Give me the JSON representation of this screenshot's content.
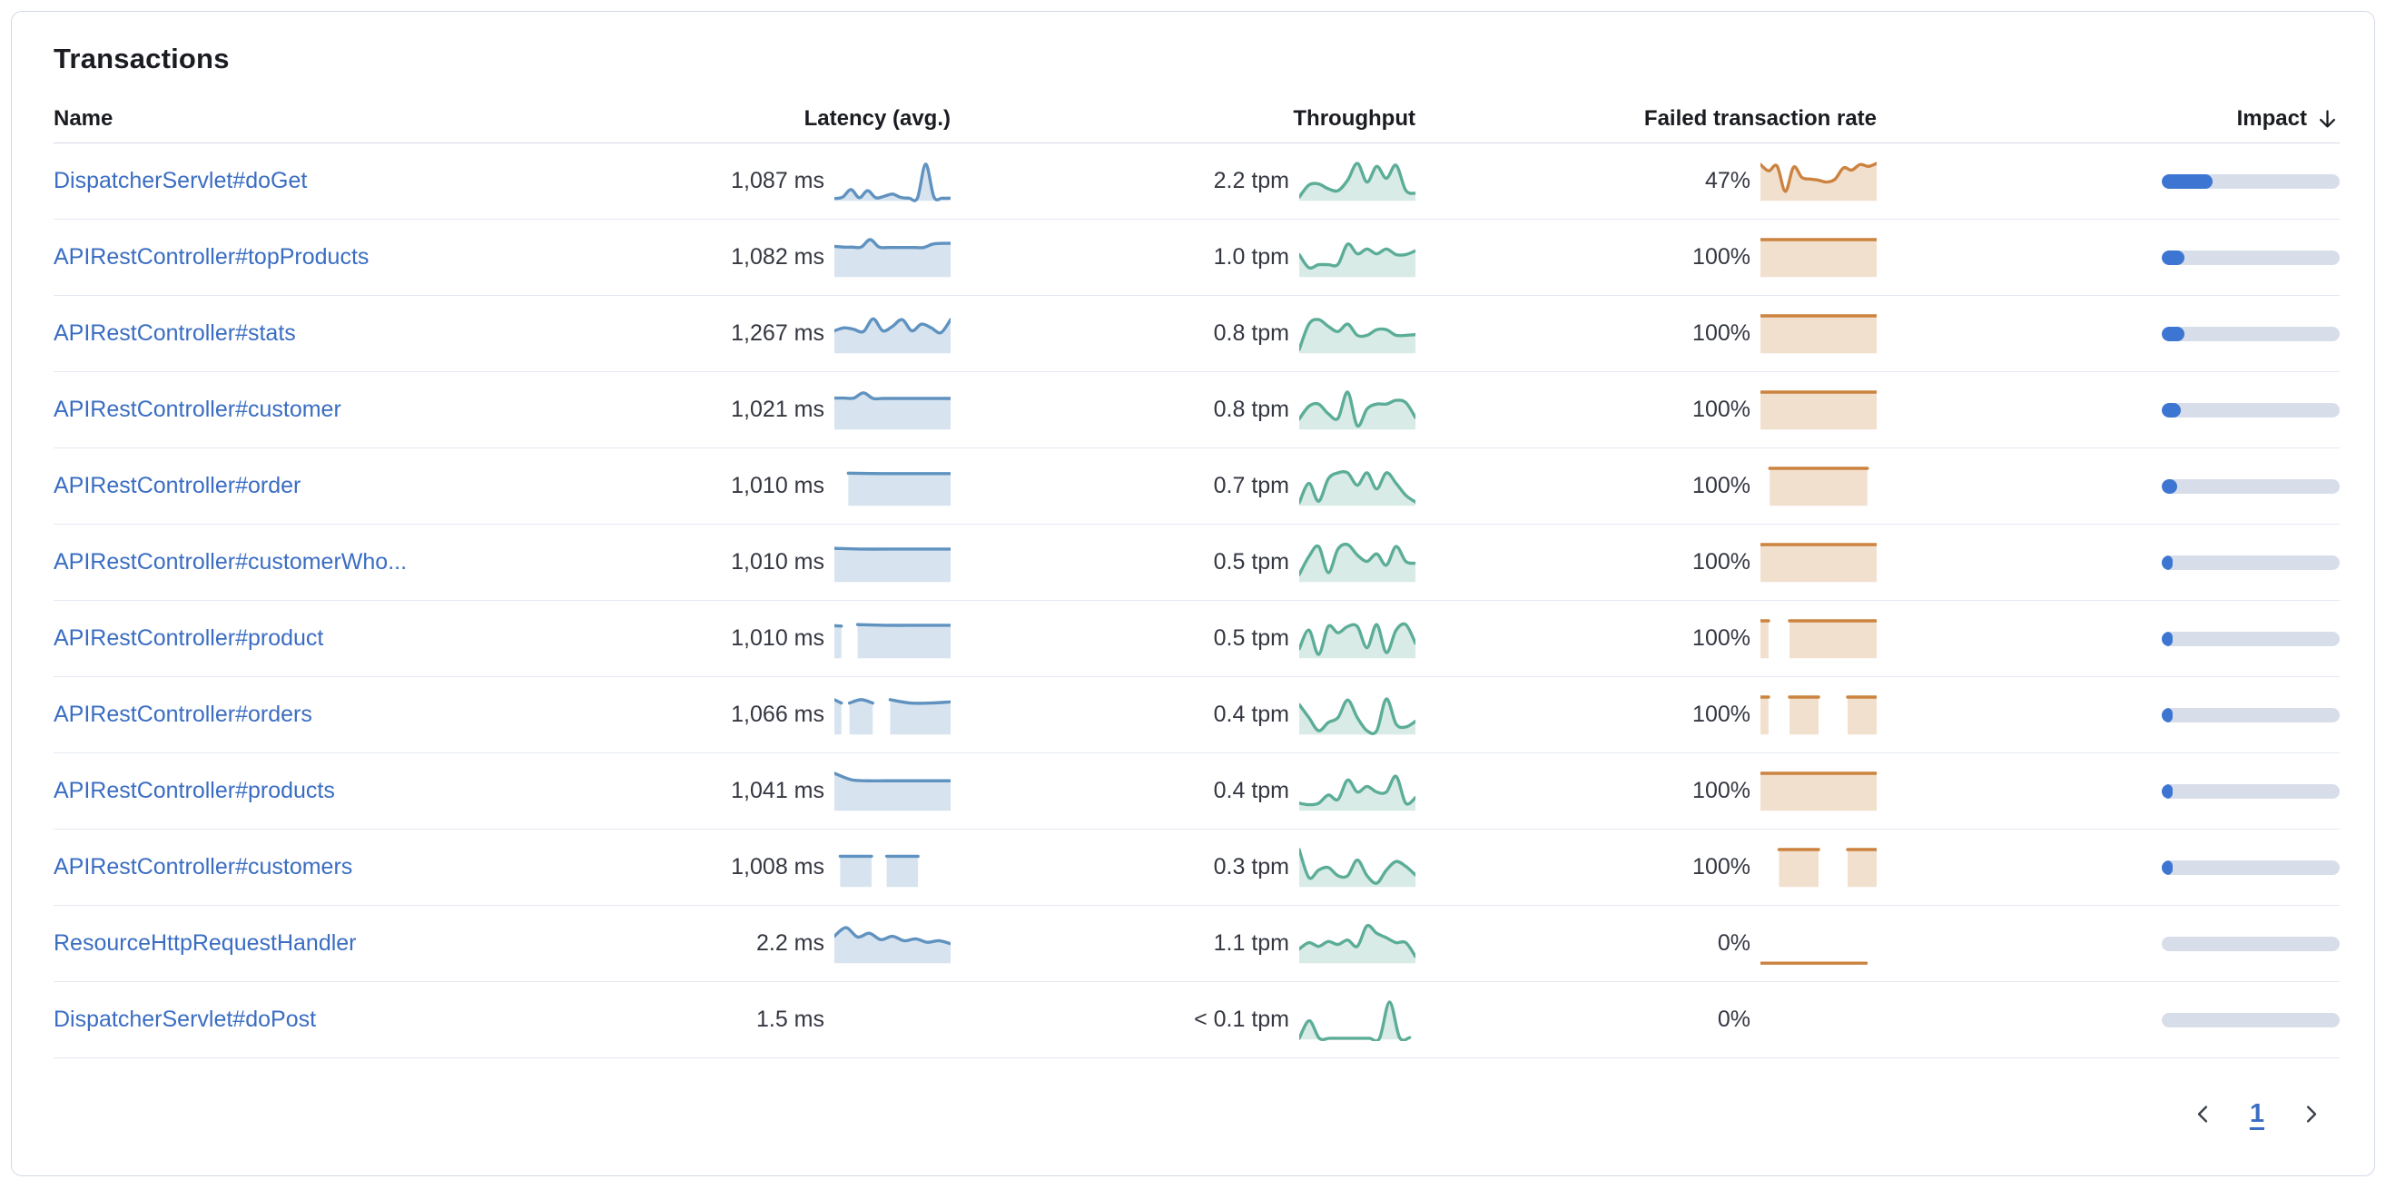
{
  "panel": {
    "title": "Transactions"
  },
  "table": {
    "columns": [
      {
        "label": "Name"
      },
      {
        "label": "Latency (avg.)"
      },
      {
        "label": "Throughput"
      },
      {
        "label": "Failed transaction rate"
      },
      {
        "label": "Impact",
        "sorted": "desc"
      }
    ],
    "rows": [
      {
        "name": "DispatcherServlet#doGet",
        "latency": "1,087 ms",
        "throughput": "2.2 tpm",
        "failed_rate": "47%",
        "impact": 0.285,
        "sparks": {
          "latency": [
            {
              "x0": 0,
              "x1": 1,
              "y": [
                0.06,
                0.1,
                0.3,
                0.08,
                0.27,
                0.08,
                0.12,
                0.18,
                0.09,
                0.07,
                0.07,
                0.98,
                0.1,
                0.07,
                0.07
              ]
            }
          ],
          "throughput": [
            {
              "x0": 0,
              "x1": 1,
              "y": [
                0.1,
                0.42,
                0.45,
                0.32,
                0.27,
                0.55,
                1.0,
                0.5,
                0.92,
                0.6,
                0.95,
                0.28,
                0.2
              ]
            }
          ],
          "failed": [
            {
              "x0": 0,
              "x1": 1,
              "y": [
                0.97,
                0.8,
                0.93,
                0.25,
                0.9,
                0.62,
                0.58,
                0.55,
                0.5,
                0.58,
                0.88,
                0.82,
                0.97,
                0.92,
                1.0
              ]
            }
          ]
        }
      },
      {
        "name": "APIRestController#topProducts",
        "latency": "1,082 ms",
        "throughput": "1.0 tpm",
        "failed_rate": "100%",
        "impact": 0.126,
        "sparks": {
          "latency": [
            {
              "x0": 0,
              "x1": 1,
              "y": [
                0.82,
                0.8,
                0.8,
                0.8,
                1.0,
                0.8,
                0.79,
                0.79,
                0.79,
                0.79,
                0.79,
                0.88,
                0.9,
                0.9
              ]
            }
          ],
          "throughput": [
            {
              "x0": 0,
              "x1": 1,
              "y": [
                0.6,
                0.25,
                0.33,
                0.33,
                0.34,
                0.88,
                0.62,
                0.75,
                0.62,
                0.75,
                0.6,
                0.6,
                0.7
              ]
            }
          ],
          "failed": [
            {
              "x0": 0,
              "x1": 1,
              "y": [
                1,
                1,
                1
              ]
            }
          ]
        }
      },
      {
        "name": "APIRestController#stats",
        "latency": "1,267 ms",
        "throughput": "0.8 tpm",
        "failed_rate": "100%",
        "impact": 0.13,
        "sparks": {
          "latency": [
            {
              "x0": 0,
              "x1": 1,
              "y": [
                0.6,
                0.68,
                0.64,
                0.58,
                0.92,
                0.6,
                0.72,
                0.9,
                0.6,
                0.78,
                0.68,
                0.55,
                0.9
              ]
            }
          ],
          "throughput": [
            {
              "x0": 0,
              "x1": 1,
              "y": [
                0.1,
                0.78,
                0.9,
                0.72,
                0.58,
                0.78,
                0.48,
                0.48,
                0.63,
                0.63,
                0.48,
                0.48,
                0.5
              ]
            }
          ],
          "failed": [
            {
              "x0": 0,
              "x1": 1,
              "y": [
                1,
                1,
                1
              ]
            }
          ]
        }
      },
      {
        "name": "APIRestController#customer",
        "latency": "1,021 ms",
        "throughput": "0.8 tpm",
        "failed_rate": "100%",
        "impact": 0.108,
        "sparks": {
          "latency": [
            {
              "x0": 0,
              "x1": 1,
              "y": [
                0.84,
                0.84,
                0.84,
                0.98,
                0.83,
                0.83,
                0.83,
                0.83,
                0.83,
                0.83,
                0.83,
                0.83,
                0.83
              ]
            }
          ],
          "throughput": [
            {
              "x0": 0,
              "x1": 1,
              "y": [
                0.28,
                0.62,
                0.68,
                0.42,
                0.3,
                1.0,
                0.1,
                0.55,
                0.68,
                0.68,
                0.78,
                0.72,
                0.32
              ]
            }
          ],
          "failed": [
            {
              "x0": 0,
              "x1": 1,
              "y": [
                1,
                1,
                1
              ]
            }
          ]
        }
      },
      {
        "name": "APIRestController#order",
        "latency": "1,010 ms",
        "throughput": "0.7 tpm",
        "failed_rate": "100%",
        "impact": 0.088,
        "sparks": {
          "latency": [
            {
              "x0": 0.12,
              "x1": 1,
              "y": [
                0.87,
                0.86,
                0.86,
                0.86
              ]
            }
          ],
          "throughput": [
            {
              "x0": 0,
              "x1": 1,
              "y": [
                0.08,
                0.6,
                0.12,
                0.72,
                0.88,
                0.88,
                0.55,
                0.88,
                0.45,
                0.88,
                0.6,
                0.28,
                0.1
              ]
            }
          ],
          "failed": [
            {
              "x0": 0.08,
              "x1": 0.92,
              "y": [
                1,
                1
              ]
            }
          ]
        }
      },
      {
        "name": "APIRestController#customerWho...",
        "latency": "1,010 ms",
        "throughput": "0.5 tpm",
        "failed_rate": "100%",
        "impact": 0.062,
        "sparks": {
          "latency": [
            {
              "x0": 0,
              "x1": 1,
              "y": [
                0.9,
                0.88,
                0.88,
                0.88,
                0.88
              ]
            }
          ],
          "throughput": [
            {
              "x0": 0,
              "x1": 1,
              "y": [
                0.2,
                0.68,
                0.95,
                0.25,
                0.88,
                1.0,
                0.72,
                0.55,
                0.75,
                0.45,
                0.95,
                0.55,
                0.5
              ]
            }
          ],
          "failed": [
            {
              "x0": 0,
              "x1": 1,
              "y": [
                1,
                1,
                1
              ]
            }
          ]
        }
      },
      {
        "name": "APIRestController#product",
        "latency": "1,010 ms",
        "throughput": "0.5 tpm",
        "failed_rate": "100%",
        "impact": 0.06,
        "sparks": {
          "latency": [
            {
              "x0": 0,
              "x1": 0.06,
              "y": [
                0.87,
                0.86
              ]
            },
            {
              "x0": 0.2,
              "x1": 1,
              "y": [
                0.9,
                0.88,
                0.88,
                0.88
              ]
            }
          ],
          "throughput": [
            {
              "x0": 0,
              "x1": 1,
              "y": [
                0.25,
                0.75,
                0.1,
                0.85,
                0.68,
                0.85,
                0.85,
                0.28,
                0.9,
                0.15,
                0.75,
                0.9,
                0.4
              ]
            }
          ],
          "failed": [
            {
              "x0": 0,
              "x1": 0.07,
              "y": [
                1,
                1
              ]
            },
            {
              "x0": 0.25,
              "x1": 1,
              "y": [
                1,
                1
              ]
            }
          ]
        }
      },
      {
        "name": "APIRestController#orders",
        "latency": "1,066 ms",
        "throughput": "0.4 tpm",
        "failed_rate": "100%",
        "impact": 0.056,
        "sparks": {
          "latency": [
            {
              "x0": 0,
              "x1": 0.06,
              "y": [
                0.93,
                0.84
              ]
            },
            {
              "x0": 0.13,
              "x1": 0.33,
              "y": [
                0.84,
                0.93,
                0.84
              ]
            },
            {
              "x0": 0.48,
              "x1": 1,
              "y": [
                0.93,
                0.84,
                0.84,
                0.87
              ]
            }
          ],
          "throughput": [
            {
              "x0": 0,
              "x1": 1,
              "y": [
                0.8,
                0.45,
                0.1,
                0.32,
                0.45,
                0.92,
                0.45,
                0.1,
                0.1,
                0.95,
                0.28,
                0.2,
                0.35
              ]
            }
          ],
          "failed": [
            {
              "x0": 0,
              "x1": 0.07,
              "y": [
                1,
                1
              ]
            },
            {
              "x0": 0.25,
              "x1": 0.5,
              "y": [
                1,
                1
              ]
            },
            {
              "x0": 0.75,
              "x1": 1,
              "y": [
                1,
                1
              ]
            }
          ]
        }
      },
      {
        "name": "APIRestController#products",
        "latency": "1,041 ms",
        "throughput": "0.4 tpm",
        "failed_rate": "100%",
        "impact": 0.06,
        "sparks": {
          "latency": [
            {
              "x0": 0,
              "x1": 1,
              "y": [
                1.0,
                0.83,
                0.8,
                0.8,
                0.8,
                0.8,
                0.8,
                0.8
              ]
            }
          ],
          "throughput": [
            {
              "x0": 0,
              "x1": 1,
              "y": [
                0.2,
                0.16,
                0.2,
                0.42,
                0.3,
                0.82,
                0.5,
                0.65,
                0.5,
                0.5,
                0.92,
                0.2,
                0.35
              ]
            }
          ],
          "failed": [
            {
              "x0": 0,
              "x1": 1,
              "y": [
                1,
                1,
                1
              ]
            }
          ]
        }
      },
      {
        "name": "APIRestController#customers",
        "latency": "1,008 ms",
        "throughput": "0.3 tpm",
        "failed_rate": "100%",
        "impact": 0.05,
        "sparks": {
          "latency": [
            {
              "x0": 0.05,
              "x1": 0.32,
              "y": [
                0.82,
                0.82
              ]
            },
            {
              "x0": 0.45,
              "x1": 0.72,
              "y": [
                0.82,
                0.82
              ]
            }
          ],
          "throughput": [
            {
              "x0": 0,
              "x1": 1,
              "y": [
                1.0,
                0.25,
                0.45,
                0.52,
                0.3,
                0.3,
                0.72,
                0.3,
                0.1,
                0.45,
                0.68,
                0.55,
                0.32
              ]
            }
          ],
          "failed": [
            {
              "x0": 0.16,
              "x1": 0.5,
              "y": [
                1,
                1
              ]
            },
            {
              "x0": 0.75,
              "x1": 1,
              "y": [
                1,
                1
              ]
            }
          ]
        }
      },
      {
        "name": "ResourceHttpRequestHandler",
        "latency": "2.2 ms",
        "throughput": "1.1 tpm",
        "failed_rate": "0%",
        "impact": 0,
        "sparks": {
          "latency": [
            {
              "x0": 0,
              "x1": 1,
              "y": [
                0.72,
                0.95,
                0.7,
                0.8,
                0.63,
                0.72,
                0.6,
                0.65,
                0.56,
                0.6,
                0.52
              ]
            }
          ],
          "throughput": [
            {
              "x0": 0,
              "x1": 1,
              "y": [
                0.38,
                0.55,
                0.45,
                0.58,
                0.5,
                0.62,
                0.45,
                1.0,
                0.8,
                0.68,
                0.55,
                0.55,
                0.18
              ]
            }
          ],
          "failed": [
            {
              "x0": 0,
              "x1": 0.91,
              "y": [
                0,
                0
              ]
            }
          ]
        }
      },
      {
        "name": "DispatcherServlet#doPost",
        "latency": "1.5 ms",
        "throughput": "< 0.1 tpm",
        "failed_rate": "0%",
        "impact": 0,
        "sparks": {
          "latency": [],
          "throughput": [
            {
              "x0": 0,
              "x1": 0.95,
              "y": [
                0.03,
                0.5,
                0.03,
                0.03,
                0.03,
                0.03,
                0.03,
                0.03,
                0.03,
                1.0,
                0.05,
                0.05
              ]
            }
          ],
          "failed": []
        }
      }
    ]
  },
  "pagination": {
    "page": "1"
  },
  "colors": {
    "link": "#3a6dc2",
    "latency_line": "#6092C0",
    "latency_fill": "rgba(96,146,192,0.25)",
    "throughput_line": "#5CAD97",
    "throughput_fill": "rgba(92,173,151,0.24)",
    "failed_line": "#CB833F",
    "failed_fill": "rgba(203,131,63,0.25)",
    "impact_fill": "#3C76D2",
    "impact_track": "#D8DEE9"
  }
}
